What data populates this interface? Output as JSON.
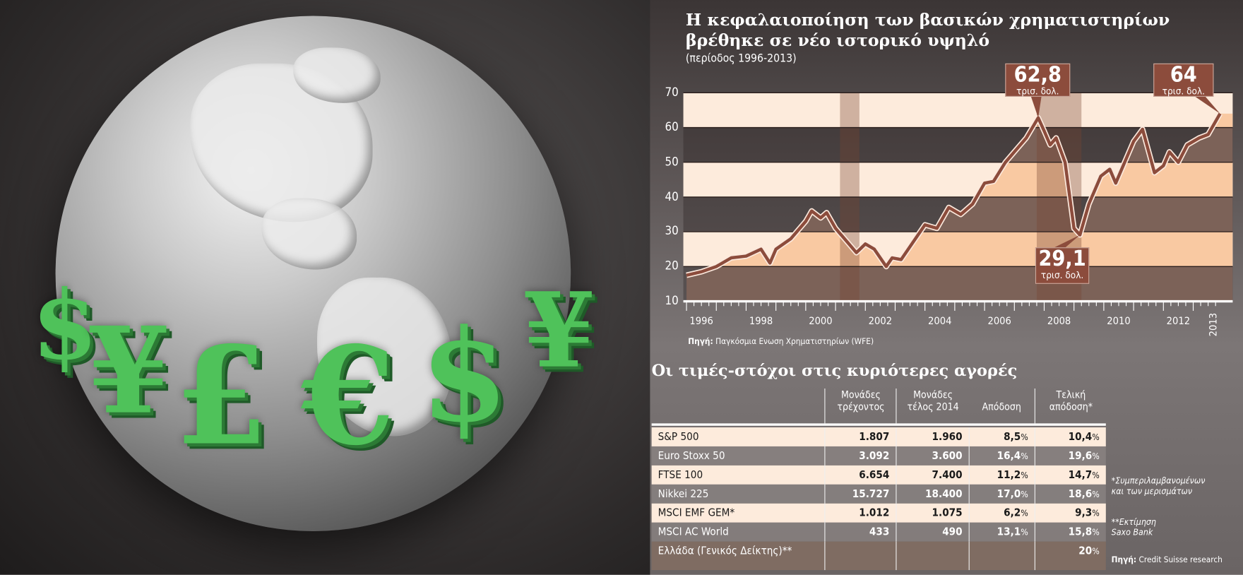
{
  "photo": {
    "currency_symbols": [
      "$",
      "¥",
      "£",
      "€",
      "$",
      "¥"
    ]
  },
  "header": {
    "title_line1": "Η κεφαλαιοποίηση των βασικών χρηματιστηρίων",
    "title_line2": "βρέθηκε σε νέο ιστορικό υψηλό",
    "subtitle": "(περίοδος 1996-2013)"
  },
  "chart_data": {
    "type": "line",
    "title": "Η κεφαλαιοποίηση των βασικών χρηματιστηρίων βρέθηκε σε νέο ιστορικό υψηλό",
    "subtitle": "(περίοδος 1996-2013)",
    "xlabel": "",
    "ylabel": "",
    "ylim": [
      10,
      70
    ],
    "yticks": [
      "10",
      "20",
      "30",
      "40",
      "50",
      "60",
      "70"
    ],
    "xticks": [
      "1996",
      "1998",
      "2000",
      "2002",
      "2004",
      "2006",
      "2008",
      "2010",
      "2012",
      "2013"
    ],
    "xlim": [
      1996,
      2014
    ],
    "grid": true,
    "shaded_periods": [
      [
        2001.15,
        2001.8
      ],
      [
        2007.75,
        2009.25
      ]
    ],
    "x": [
      1996.0,
      1996.5,
      1997.0,
      1997.5,
      1998.0,
      1998.5,
      1998.8,
      1999.0,
      1999.5,
      2000.0,
      2000.2,
      2000.5,
      2000.7,
      2001.0,
      2001.3,
      2001.7,
      2002.0,
      2002.3,
      2002.7,
      2002.9,
      2003.2,
      2003.6,
      2004.0,
      2004.4,
      2004.8,
      2005.2,
      2005.6,
      2006.0,
      2006.3,
      2006.7,
      2007.0,
      2007.4,
      2007.8,
      2008.0,
      2008.2,
      2008.4,
      2008.7,
      2009.0,
      2009.2,
      2009.5,
      2009.9,
      2010.2,
      2010.4,
      2010.7,
      2011.0,
      2011.3,
      2011.7,
      2012.0,
      2012.2,
      2012.5,
      2012.8,
      2013.2,
      2013.5,
      2013.9
    ],
    "values": [
      17.5,
      18.5,
      20,
      22.5,
      23,
      25,
      21,
      25,
      28,
      33,
      36,
      34,
      35.5,
      31,
      28,
      24,
      26.5,
      25,
      20,
      22.5,
      22,
      27,
      32,
      31,
      37,
      35,
      38,
      44,
      44.5,
      50,
      53,
      57,
      62.8,
      59,
      55,
      57,
      50,
      31,
      29.1,
      38,
      46,
      48,
      44,
      50,
      56,
      59.5,
      47,
      49,
      53,
      50,
      55,
      57,
      58,
      64
    ],
    "annotations": [
      {
        "value": "62,8",
        "unit": "τρισ. δολ."
      },
      {
        "value": "29,1",
        "unit": "τρισ. δολ."
      },
      {
        "value": "64",
        "unit": "τρισ. δολ."
      }
    ],
    "colors": {
      "line": "#8c4c3c",
      "band_light": "#fdebdc",
      "area_light": "#f9c9a2",
      "area_dark": "#7c6258",
      "callout": "#8c4c3c"
    }
  },
  "source": {
    "label": "Πηγή:",
    "text": "Παγκόσμια Ενωση Χρηματιστηρίων (WFE)"
  },
  "table": {
    "title": "Οι τιμές-στόχοι στις κυριότερες αγορές",
    "headers": [
      {
        "l1": "Μονάδες",
        "l2": "τρέχοντος"
      },
      {
        "l1": "Μονάδες",
        "l2": "τέλος 2014"
      },
      {
        "l1": "",
        "l2": "Απόδοση"
      },
      {
        "l1": "Τελική",
        "l2": "απόδοση*"
      }
    ],
    "rows": [
      {
        "name": "S&P 500",
        "current": "1.807",
        "target": "1.960",
        "ret": "8,5",
        "total": "10,4"
      },
      {
        "name": "Euro Stoxx 50",
        "current": "3.092",
        "target": "3.600",
        "ret": "16,4",
        "total": "19,6"
      },
      {
        "name": "FTSE 100",
        "current": "6.654",
        "target": "7.400",
        "ret": "11,2",
        "total": "14,7"
      },
      {
        "name": "Nikkei 225",
        "current": "15.727",
        "target": "18.400",
        "ret": "17,0",
        "total": "18,6"
      },
      {
        "name": "MSCI EMF GEM*",
        "current": "1.012",
        "target": "1.075",
        "ret": "6,2",
        "total": "9,3"
      },
      {
        "name": "MSCI AC World",
        "current": "433",
        "target": "490",
        "ret": "13,1",
        "total": "15,8"
      },
      {
        "name": "Ελλάδα (Γενικός Δείκτης)**",
        "current": "",
        "target": "",
        "ret": "",
        "total": "20"
      }
    ],
    "percent_sign": "%"
  },
  "footnotes": {
    "f1_l1": "*Συμπεριλαμβανομένων",
    "f1_l2": "και των μερισμάτων",
    "f2_l1": "**Εκτίμηση",
    "f2_l2": "Saxo Bank",
    "source_label": "Πηγή:",
    "source_text": "Credit Suisse research"
  }
}
